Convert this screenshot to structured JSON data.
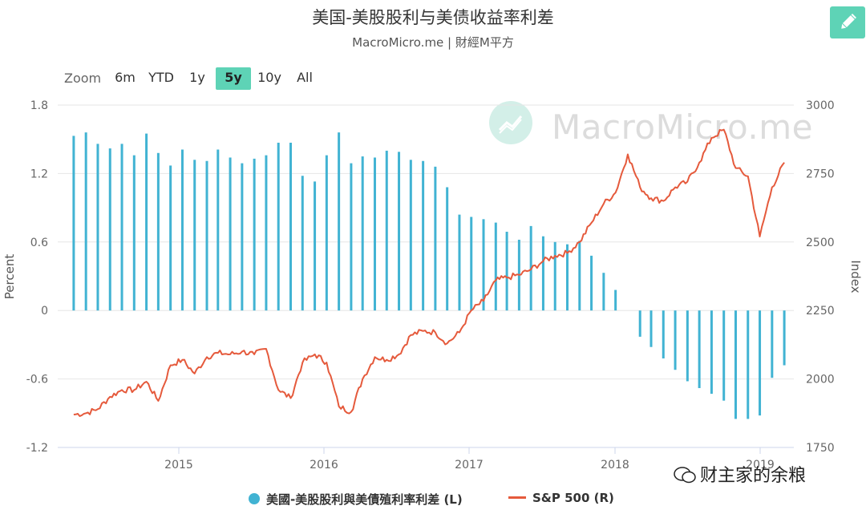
{
  "header": {
    "title": "美国-美股股利与美债收益率利差",
    "subtitle": "MacroMicro.me | 財經M平方"
  },
  "toolbar": {
    "edit_icon": "pencil-icon",
    "zoom_label": "Zoom",
    "zoom_buttons": [
      "6m",
      "YTD",
      "1y",
      "5y",
      "10y",
      "All"
    ],
    "zoom_active": "5y"
  },
  "logo_watermark": "MacroMicro.me",
  "corner_watermark": "财主家的余粮",
  "colors": {
    "bars": "#41b3d3",
    "line": "#e55a3c",
    "accent": "#5ed3b6"
  },
  "chart_data": {
    "type": "bar+line",
    "x_tick_labels": [
      "2015",
      "2016",
      "2017",
      "2018",
      "2019"
    ],
    "left_axis": {
      "title": "Percent",
      "ylim": [
        -1.2,
        1.8
      ],
      "ticks": [
        "1.8",
        "1.2",
        "0.6",
        "0",
        "-0.6",
        "-1.2"
      ]
    },
    "right_axis": {
      "title": "Index",
      "ylim": [
        1750,
        3000
      ],
      "ticks": [
        "3000",
        "2750",
        "2500",
        "2250",
        "2000",
        "1750"
      ]
    },
    "legend": {
      "bars": "美國-美股股利與美債殖利率利差 (L)",
      "line": "S&P 500 (R)"
    },
    "series": [
      {
        "name": "美國-美股股利與美債殖利率利差 (L)",
        "type": "bar",
        "axis": "left",
        "x": [
          "2014-03",
          "2014-04",
          "2014-05",
          "2014-06",
          "2014-07",
          "2014-08",
          "2014-09",
          "2014-10",
          "2014-11",
          "2014-12",
          "2015-01",
          "2015-02",
          "2015-03",
          "2015-04",
          "2015-05",
          "2015-06",
          "2015-07",
          "2015-08",
          "2015-09",
          "2015-10",
          "2015-11",
          "2015-12",
          "2016-01",
          "2016-02",
          "2016-03",
          "2016-04",
          "2016-05",
          "2016-06",
          "2016-07",
          "2016-08",
          "2016-09",
          "2016-10",
          "2016-11",
          "2016-12",
          "2017-01",
          "2017-02",
          "2017-03",
          "2017-04",
          "2017-05",
          "2017-06",
          "2017-07",
          "2017-08",
          "2017-09",
          "2017-10",
          "2017-11",
          "2017-12",
          "2018-01",
          "2018-02",
          "2018-03",
          "2018-04",
          "2018-05",
          "2018-06",
          "2018-07",
          "2018-08",
          "2018-09",
          "2018-10",
          "2018-11",
          "2018-12",
          "2019-01",
          "2019-02"
        ],
        "values": [
          1.53,
          1.56,
          1.46,
          1.42,
          1.46,
          1.36,
          1.55,
          1.38,
          1.27,
          1.41,
          1.32,
          1.31,
          1.41,
          1.34,
          1.29,
          1.33,
          1.36,
          1.47,
          1.47,
          1.18,
          1.13,
          1.36,
          1.56,
          1.29,
          1.35,
          1.34,
          1.4,
          1.39,
          1.32,
          1.31,
          1.26,
          1.08,
          0.84,
          0.82,
          0.8,
          0.77,
          0.69,
          0.62,
          0.74,
          0.65,
          0.6,
          0.58,
          0.61,
          0.48,
          0.33,
          0.18,
          null,
          -0.23,
          -0.32,
          -0.42,
          -0.52,
          -0.62,
          -0.68,
          -0.73,
          -0.79,
          -0.95,
          -0.95,
          -0.92,
          -0.59,
          -0.48
        ]
      },
      {
        "name": "S&P 500 (R)",
        "type": "line",
        "axis": "right",
        "x": [
          "2014-03",
          "2014-04",
          "2014-05",
          "2014-06",
          "2014-07",
          "2014-08",
          "2014-09",
          "2014-10",
          "2014-11",
          "2014-12",
          "2015-01",
          "2015-02",
          "2015-03",
          "2015-04",
          "2015-05",
          "2015-06",
          "2015-07",
          "2015-08",
          "2015-09",
          "2015-10",
          "2015-11",
          "2015-12",
          "2016-01",
          "2016-02",
          "2016-03",
          "2016-04",
          "2016-05",
          "2016-06",
          "2016-07",
          "2016-08",
          "2016-09",
          "2016-10",
          "2016-11",
          "2016-12",
          "2017-01",
          "2017-02",
          "2017-03",
          "2017-04",
          "2017-05",
          "2017-06",
          "2017-07",
          "2017-08",
          "2017-09",
          "2017-10",
          "2017-11",
          "2017-12",
          "2018-01",
          "2018-02",
          "2018-03",
          "2018-04",
          "2018-05",
          "2018-06",
          "2018-07",
          "2018-08",
          "2018-09",
          "2018-10",
          "2018-11",
          "2018-12",
          "2019-01",
          "2019-02"
        ],
        "values": [
          1870,
          1875,
          1890,
          1935,
          1960,
          1960,
          1990,
          1920,
          2050,
          2070,
          2020,
          2080,
          2095,
          2090,
          2100,
          2090,
          2110,
          1960,
          1930,
          2060,
          2090,
          2060,
          1900,
          1880,
          2000,
          2080,
          2070,
          2090,
          2160,
          2175,
          2170,
          2130,
          2170,
          2250,
          2285,
          2360,
          2370,
          2380,
          2400,
          2430,
          2450,
          2460,
          2500,
          2570,
          2640,
          2680,
          2820,
          2700,
          2660,
          2650,
          2700,
          2720,
          2790,
          2880,
          2910,
          2770,
          2740,
          2520,
          2700,
          2790
        ]
      }
    ]
  }
}
